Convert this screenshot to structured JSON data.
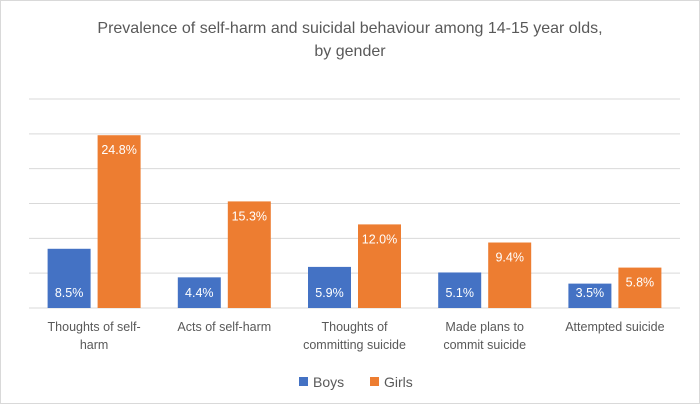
{
  "chart_data": {
    "type": "bar",
    "title": [
      "Prevalence of self-harm and suicidal behaviour among 14-15 year olds,",
      "by gender"
    ],
    "categories": [
      [
        "Thoughts of self-",
        "harm"
      ],
      [
        "Acts of self-harm"
      ],
      [
        "Thoughts of",
        "committing suicide"
      ],
      [
        "Made plans to",
        "commit suicide"
      ],
      [
        "Attempted suicide"
      ]
    ],
    "series": [
      {
        "name": "Boys",
        "color": "#4472c4",
        "values": [
          8.5,
          4.4,
          5.9,
          5.1,
          3.5
        ],
        "labels": [
          "8.5%",
          "4.4%",
          "5.9%",
          "5.1%",
          "3.5%"
        ]
      },
      {
        "name": "Girls",
        "color": "#ed7d31",
        "values": [
          24.8,
          15.3,
          12.0,
          9.4,
          5.8
        ],
        "labels": [
          "24.8%",
          "15.3%",
          "12.0%",
          "9.4%",
          "5.8%"
        ]
      }
    ],
    "ylim": [
      0,
      30
    ],
    "ytick_step": 5,
    "y_axis_labels_shown": false,
    "grid": true,
    "legend": "bottom",
    "gridline_color": "#d9d9d9"
  }
}
